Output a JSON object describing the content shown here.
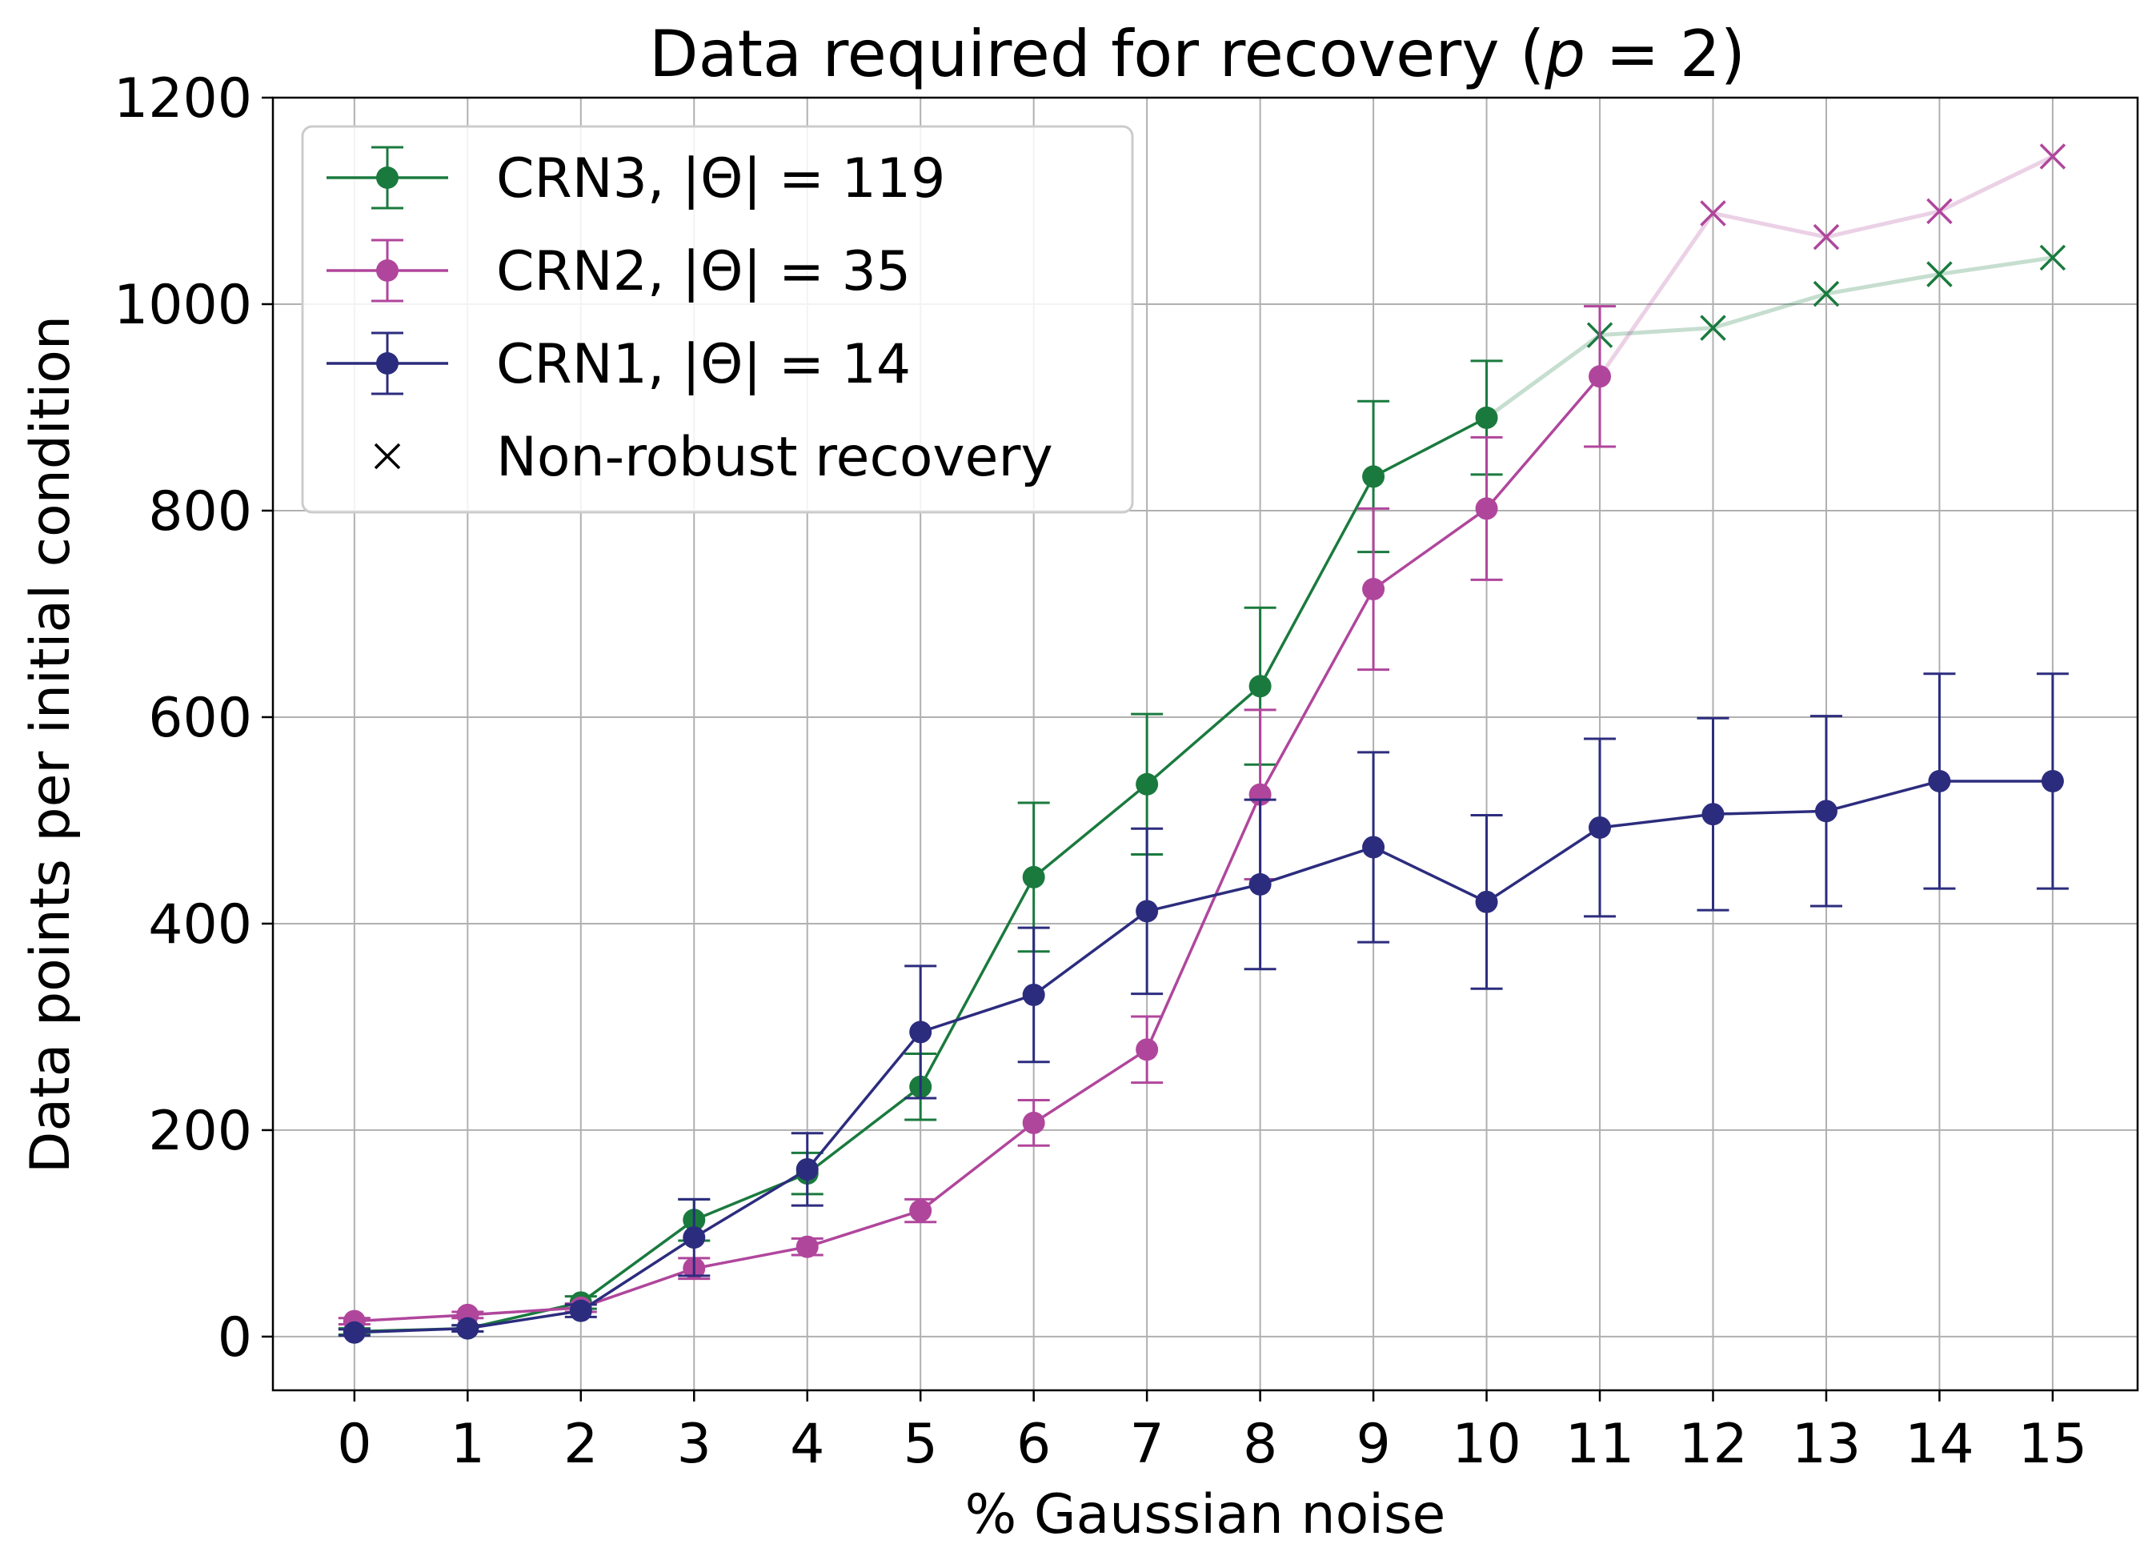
{
  "chart_data": {
    "type": "line",
    "title": "Data required for recovery (",
    "title_var": "p",
    "title_eq": " = 2)",
    "xlabel": "% Gaussian noise",
    "ylabel": "Data points per initial condition",
    "xlim": [
      -0.72,
      15.75
    ],
    "ylim": [
      -52,
      1200
    ],
    "x_ticks": [
      "0",
      "1",
      "2",
      "3",
      "4",
      "5",
      "6",
      "7",
      "8",
      "9",
      "10",
      "11",
      "12",
      "13",
      "14",
      "15"
    ],
    "y_ticks": [
      "0",
      "200",
      "400",
      "600",
      "800",
      "1000",
      "1200"
    ],
    "y_tick_values": [
      0,
      200,
      400,
      600,
      800,
      1000,
      1200
    ],
    "grid": true,
    "legend_position": "top-left",
    "series": [
      {
        "key": "crn3",
        "name": "CRN3, |Θ| = 119",
        "color": "#1a7a3e",
        "x": [
          0,
          1,
          2,
          3,
          4,
          5,
          6,
          7,
          8,
          9,
          10,
          11,
          12,
          13,
          14,
          15
        ],
        "y": [
          5,
          8,
          33,
          113,
          158,
          242,
          445,
          535,
          630,
          833,
          890,
          970,
          977,
          1010,
          1029,
          1045
        ],
        "err": [
          3,
          3,
          6,
          20,
          20,
          32,
          72,
          68,
          76,
          73,
          55,
          null,
          null,
          null,
          null,
          null
        ],
        "robust_until": 10
      },
      {
        "key": "crn2",
        "name": "CRN2, |Θ| = 35",
        "color": "#b0469c",
        "x": [
          0,
          1,
          2,
          3,
          4,
          5,
          6,
          7,
          8,
          9,
          10,
          11,
          12,
          13,
          14,
          15
        ],
        "y": [
          15,
          21,
          28,
          66,
          87,
          122,
          207,
          278,
          525,
          724,
          802,
          930,
          1088,
          1065,
          1090,
          1143
        ],
        "err": [
          3,
          3,
          4,
          10,
          8,
          11,
          22,
          32,
          82,
          78,
          69,
          68,
          null,
          null,
          null,
          null
        ],
        "robust_until": 11
      },
      {
        "key": "crn1",
        "name": "CRN1, |Θ| = 14",
        "color": "#2c2c7e",
        "x": [
          0,
          1,
          2,
          3,
          4,
          5,
          6,
          7,
          8,
          9,
          10,
          11,
          12,
          13,
          14,
          15
        ],
        "y": [
          4,
          8,
          25,
          96,
          162,
          295,
          331,
          412,
          438,
          474,
          421,
          493,
          506,
          509,
          538,
          538
        ],
        "err": [
          3,
          3,
          6,
          37,
          35,
          64,
          65,
          80,
          82,
          92,
          84,
          86,
          93,
          92,
          104,
          104
        ],
        "robust_until": 15
      }
    ],
    "marker_note": "Non-robust recovery"
  }
}
